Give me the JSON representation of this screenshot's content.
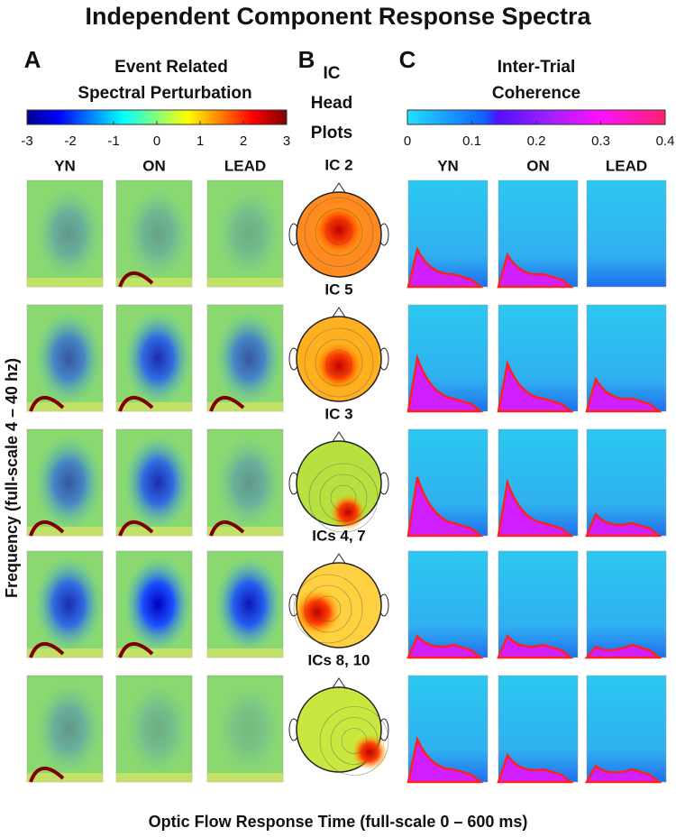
{
  "title": "Independent Component Response Spectra",
  "panels": {
    "A": {
      "letter": "A",
      "title_lines": [
        "Event Related",
        "Spectral Perturbation"
      ],
      "colorbar_ticks": [
        -3,
        -2,
        -1,
        0,
        1,
        2,
        3
      ],
      "conditions": [
        "YN",
        "ON",
        "LEAD"
      ]
    },
    "B": {
      "letter": "B",
      "title_lines": [
        "IC",
        "Head",
        "Plots"
      ],
      "components": [
        "IC 2",
        "IC 5",
        "IC 3",
        "ICs 4, 7",
        "ICs 8, 10"
      ]
    },
    "C": {
      "letter": "C",
      "title_lines": [
        "Inter-Trial",
        "Coherence"
      ],
      "colorbar_ticks": [
        0,
        0.1,
        0.2,
        0.3,
        0.4
      ],
      "conditions": [
        "YN",
        "ON",
        "LEAD"
      ]
    }
  },
  "y_axis_label": "Frequency (full-scale 4 – 40 hz)",
  "x_axis_label": "Optic Flow Response Time (full-scale 0 – 600 ms)"
}
